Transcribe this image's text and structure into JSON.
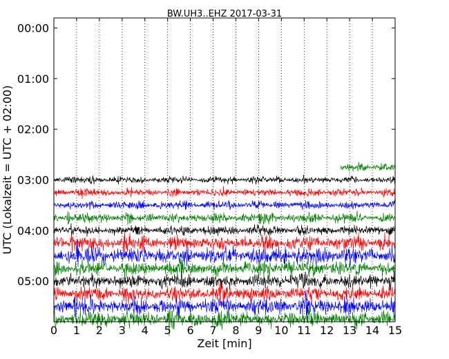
{
  "chart_data": {
    "type": "line",
    "title": "BW.UH3..EHZ 2017-03-31",
    "xlabel": "Zeit  [min]",
    "ylabel": "UTC (Lokalzeit = UTC + 02:00)",
    "xlim": [
      0,
      15
    ],
    "ylim_hours": [
      0,
      6
    ],
    "x_ticks": [
      0,
      1,
      2,
      3,
      4,
      5,
      6,
      7,
      8,
      9,
      10,
      11,
      12,
      13,
      14,
      15
    ],
    "x_tick_labels": [
      "0",
      "1",
      "2",
      "3",
      "4",
      "5",
      "6",
      "7",
      "8",
      "9",
      "10",
      "11",
      "12",
      "13",
      "14",
      "15"
    ],
    "y_tick_labels": [
      "00:00",
      "01:00",
      "02:00",
      "03:00",
      "04:00",
      "05:00"
    ],
    "grid": "vertical-dotted",
    "color_cycle": [
      "#000000",
      "#ff0000",
      "#0000ff",
      "#008000"
    ],
    "traces": [
      {
        "offset_min": 165,
        "color": "#008000",
        "start_min": 12.6,
        "end_min": 15,
        "amplitude": 3
      },
      {
        "offset_min": 180,
        "color": "#000000",
        "start_min": 0,
        "end_min": 15,
        "amplitude": 3
      },
      {
        "offset_min": 195,
        "color": "#ff0000",
        "start_min": 0,
        "end_min": 15,
        "amplitude": 3.5
      },
      {
        "offset_min": 210,
        "color": "#0000ff",
        "start_min": 0,
        "end_min": 15,
        "amplitude": 3.5
      },
      {
        "offset_min": 225,
        "color": "#008000",
        "start_min": 0,
        "end_min": 15,
        "amplitude": 4
      },
      {
        "offset_min": 240,
        "color": "#000000",
        "start_min": 0,
        "end_min": 15,
        "amplitude": 4
      },
      {
        "offset_min": 255,
        "color": "#ff0000",
        "start_min": 0,
        "end_min": 15,
        "amplitude": 6
      },
      {
        "offset_min": 270,
        "color": "#0000ff",
        "start_min": 0,
        "end_min": 15,
        "amplitude": 7
      },
      {
        "offset_min": 285,
        "color": "#008000",
        "start_min": 0,
        "end_min": 15,
        "amplitude": 6
      },
      {
        "offset_min": 300,
        "color": "#000000",
        "start_min": 0,
        "end_min": 15,
        "amplitude": 6
      },
      {
        "offset_min": 315,
        "color": "#ff0000",
        "start_min": 0,
        "end_min": 15,
        "amplitude": 6
      },
      {
        "offset_min": 330,
        "color": "#0000ff",
        "start_min": 0,
        "end_min": 15,
        "amplitude": 7
      },
      {
        "offset_min": 345,
        "color": "#008000",
        "start_min": 0,
        "end_min": 15,
        "amplitude": 7
      }
    ]
  }
}
